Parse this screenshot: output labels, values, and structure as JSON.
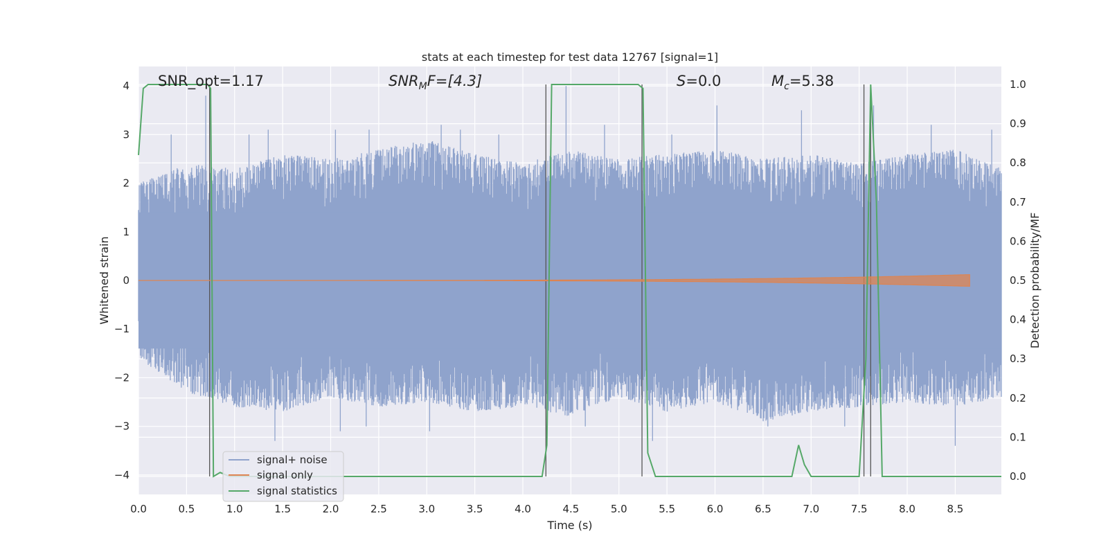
{
  "chart_data": {
    "type": "line",
    "title": "stats at each timestep for test data 12767 [signal=1]",
    "xlabel": "Time (s)",
    "ylabel": "Whitened strain",
    "ylabel_right": "Detection probability/MF",
    "xlim": [
      0,
      8.98
    ],
    "ylim": [
      -4.4,
      4.4
    ],
    "ylim_right": [
      -0.046,
      1.046
    ],
    "x_ticks": [
      "0.0",
      "0.5",
      "1.0",
      "1.5",
      "2.0",
      "2.5",
      "3.0",
      "3.5",
      "4.0",
      "4.5",
      "5.0",
      "5.5",
      "6.0",
      "6.5",
      "7.0",
      "7.5",
      "8.0",
      "8.5"
    ],
    "y_ticks": [
      "4",
      "3",
      "2",
      "1",
      "0",
      "−1",
      "−2",
      "−3",
      "−4"
    ],
    "y_ticks_right": [
      "1.0",
      "0.9",
      "0.8",
      "0.7",
      "0.6",
      "0.5",
      "0.4",
      "0.3",
      "0.2",
      "0.1",
      "0.0"
    ],
    "grid": true,
    "legend_position": "lower-left",
    "annotations": {
      "snr_opt": "SNR_opt=1.17",
      "snr_mf_main": "SNR",
      "snr_mf_sub": "M",
      "snr_mf_rest": "F=[4.3]",
      "s_main": "S",
      "s_rest": "=0.0",
      "mc_main": "M",
      "mc_sub": "c",
      "mc_rest": "=5.38"
    },
    "series": [
      {
        "name": "signal+ noise",
        "color": "#8fa3cc",
        "description_axis": "left",
        "envelope_upper": [
          [
            0.0,
            2.0
          ],
          [
            0.5,
            2.4
          ],
          [
            1.0,
            2.3
          ],
          [
            1.5,
            2.6
          ],
          [
            2.0,
            2.5
          ],
          [
            2.5,
            2.7
          ],
          [
            3.0,
            2.9
          ],
          [
            3.5,
            2.6
          ],
          [
            4.0,
            2.4
          ],
          [
            4.5,
            2.7
          ],
          [
            5.0,
            2.5
          ],
          [
            5.5,
            2.6
          ],
          [
            6.0,
            2.7
          ],
          [
            6.5,
            2.5
          ],
          [
            7.0,
            2.6
          ],
          [
            7.5,
            2.4
          ],
          [
            8.0,
            2.6
          ],
          [
            8.5,
            2.7
          ],
          [
            8.98,
            2.3
          ]
        ],
        "envelope_lower": [
          [
            0.0,
            -1.6
          ],
          [
            0.5,
            -2.3
          ],
          [
            1.0,
            -2.6
          ],
          [
            1.5,
            -2.7
          ],
          [
            2.0,
            -2.4
          ],
          [
            2.5,
            -2.6
          ],
          [
            3.0,
            -2.5
          ],
          [
            3.5,
            -2.7
          ],
          [
            4.0,
            -2.6
          ],
          [
            4.5,
            -2.8
          ],
          [
            5.0,
            -2.4
          ],
          [
            5.5,
            -2.7
          ],
          [
            6.0,
            -2.5
          ],
          [
            6.5,
            -2.9
          ],
          [
            7.0,
            -2.7
          ],
          [
            7.5,
            -2.6
          ],
          [
            8.0,
            -2.5
          ],
          [
            8.5,
            -2.6
          ],
          [
            8.98,
            -2.4
          ]
        ],
        "spikes": [
          [
            0.34,
            3.0
          ],
          [
            0.7,
            3.8
          ],
          [
            1.15,
            3.0
          ],
          [
            1.35,
            3.1
          ],
          [
            2.05,
            3.1
          ],
          [
            2.4,
            3.1
          ],
          [
            3.15,
            3.2
          ],
          [
            3.35,
            3.1
          ],
          [
            3.75,
            3.0
          ],
          [
            4.45,
            4.0
          ],
          [
            4.85,
            3.2
          ],
          [
            5.55,
            3.0
          ],
          [
            6.02,
            3.6
          ],
          [
            6.9,
            3.5
          ],
          [
            7.65,
            3.6
          ],
          [
            8.25,
            3.2
          ],
          [
            8.88,
            3.1
          ],
          [
            1.42,
            -3.3
          ],
          [
            2.1,
            -3.1
          ],
          [
            2.37,
            -3.0
          ],
          [
            3.03,
            -3.1
          ],
          [
            4.65,
            -3.0
          ],
          [
            5.35,
            -3.3
          ],
          [
            6.55,
            -3.0
          ],
          [
            7.35,
            -3.0
          ],
          [
            8.5,
            -3.4
          ]
        ]
      },
      {
        "name": "signal only",
        "color": "#dd8452",
        "description_axis": "left",
        "chirp": {
          "start": 0.0,
          "end": 8.65,
          "final_amplitude": 0.12
        }
      },
      {
        "name": "signal statistics",
        "color": "#55a868",
        "axis": "right",
        "points": [
          [
            0.0,
            0.82
          ],
          [
            0.05,
            0.99
          ],
          [
            0.1,
            1.0
          ],
          [
            0.72,
            1.0
          ],
          [
            0.75,
            0.99
          ],
          [
            0.78,
            0.0
          ],
          [
            0.85,
            0.01
          ],
          [
            0.95,
            0.0
          ],
          [
            4.2,
            0.0
          ],
          [
            4.25,
            0.08
          ],
          [
            4.3,
            1.0
          ],
          [
            5.2,
            1.0
          ],
          [
            5.25,
            0.99
          ],
          [
            5.3,
            0.06
          ],
          [
            5.38,
            0.0
          ],
          [
            6.8,
            0.0
          ],
          [
            6.87,
            0.08
          ],
          [
            6.93,
            0.03
          ],
          [
            7.0,
            0.0
          ],
          [
            7.5,
            0.0
          ],
          [
            7.57,
            0.3
          ],
          [
            7.62,
            1.0
          ],
          [
            7.68,
            0.7
          ],
          [
            7.74,
            0.0
          ],
          [
            8.98,
            0.0
          ]
        ]
      }
    ],
    "vertical_markers": [
      0.74,
      4.24,
      5.24,
      7.55,
      7.62
    ]
  }
}
